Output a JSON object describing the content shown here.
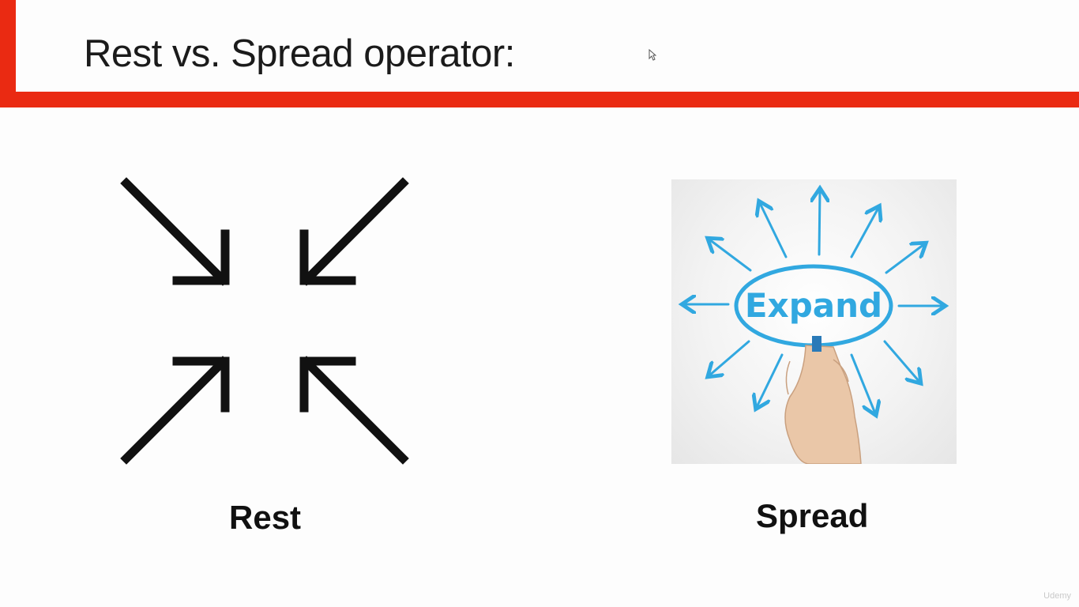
{
  "slide": {
    "title": "Rest vs. Spread operator:",
    "accent_color": "#ea2a12"
  },
  "rest": {
    "icon": "compress-arrows-icon",
    "caption": "Rest"
  },
  "spread": {
    "image": "expand-hand-drawing-image",
    "image_text": "Expand",
    "accent_color": "#31a8e0",
    "caption": "Spread"
  },
  "watermark": {
    "text": "Udemy"
  }
}
